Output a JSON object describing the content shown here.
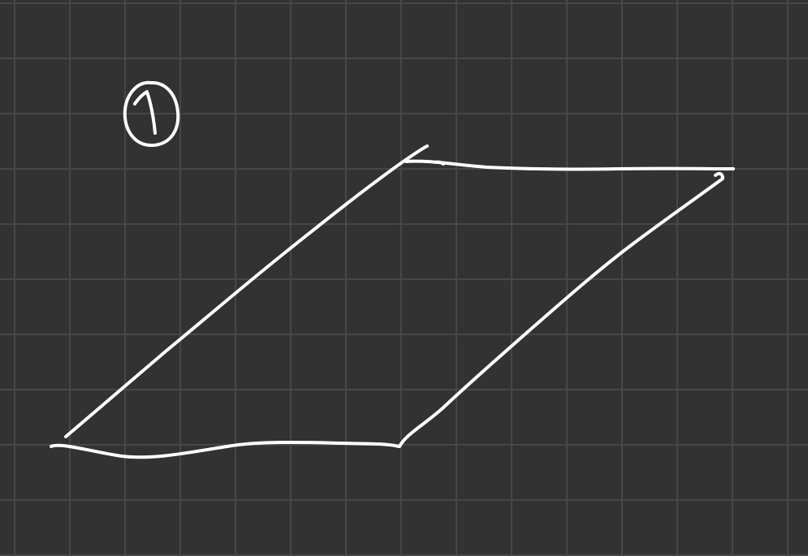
{
  "canvas": {
    "background_color": "#323232",
    "grid_color": "#474747",
    "ink_color": "#ffffff"
  },
  "annotations": {
    "figure_label": "1"
  },
  "drawing": {
    "shape": "parallelogram",
    "style": "hand-drawn"
  }
}
